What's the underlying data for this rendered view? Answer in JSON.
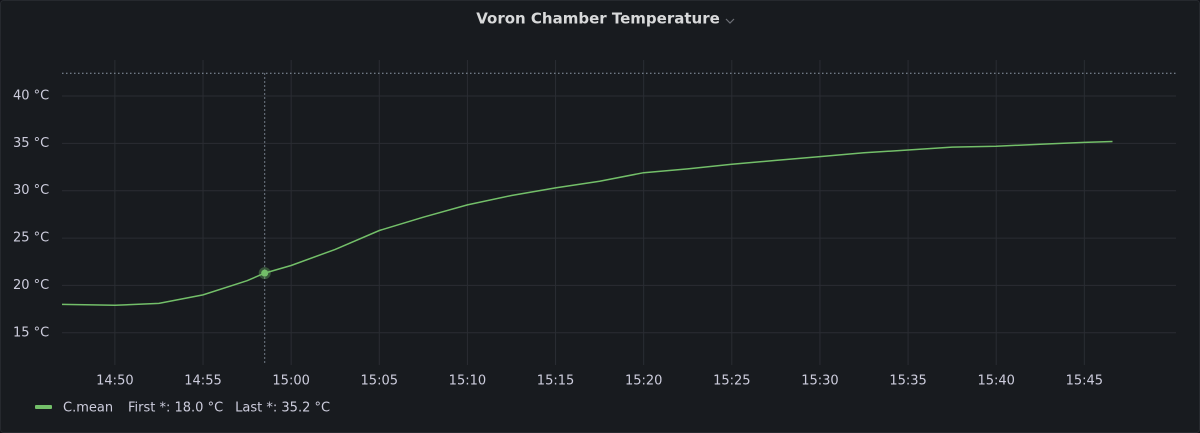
{
  "chart_data": {
    "type": "line",
    "title": "Voron Chamber Temperature",
    "x": [
      887,
      890,
      892.5,
      895,
      897.5,
      898.5,
      900,
      902.5,
      905,
      907.5,
      910,
      912.5,
      915,
      917.5,
      920,
      922.5,
      925,
      927.5,
      930,
      932.5,
      935,
      937.5,
      940,
      942.5,
      945,
      946.6
    ],
    "series": [
      {
        "name": "C.mean",
        "color": "#73bf69",
        "values": [
          18.0,
          17.9,
          18.1,
          19.0,
          20.5,
          21.3,
          22.1,
          23.8,
          25.8,
          27.2,
          28.5,
          29.5,
          30.3,
          31.0,
          31.9,
          32.3,
          32.8,
          33.2,
          33.6,
          34.0,
          34.3,
          34.6,
          34.7,
          34.9,
          35.1,
          35.2
        ]
      }
    ],
    "legend_stats": [
      "First *: 18.0 °C",
      "Last *: 35.2 °C"
    ],
    "xlim": [
      887,
      950.2
    ],
    "xticks": [
      {
        "value": 890,
        "label": "14:50"
      },
      {
        "value": 895,
        "label": "14:55"
      },
      {
        "value": 900,
        "label": "15:00"
      },
      {
        "value": 905,
        "label": "15:05"
      },
      {
        "value": 910,
        "label": "15:10"
      },
      {
        "value": 915,
        "label": "15:15"
      },
      {
        "value": 920,
        "label": "15:20"
      },
      {
        "value": 925,
        "label": "15:25"
      },
      {
        "value": 930,
        "label": "15:30"
      },
      {
        "value": 935,
        "label": "15:35"
      },
      {
        "value": 940,
        "label": "15:40"
      },
      {
        "value": 945,
        "label": "15:45"
      }
    ],
    "ylim": [
      11.6,
      43.8
    ],
    "yticks": [
      {
        "value": 15,
        "label": "15 °C"
      },
      {
        "value": 20,
        "label": "20 °C"
      },
      {
        "value": 25,
        "label": "25 °C"
      },
      {
        "value": 30,
        "label": "30 °C"
      },
      {
        "value": 35,
        "label": "35 °C"
      },
      {
        "value": 40,
        "label": "40 °C"
      }
    ],
    "grid": true,
    "crosshair": {
      "x": 898.5,
      "y": 42.4
    },
    "hover_index": 5
  }
}
